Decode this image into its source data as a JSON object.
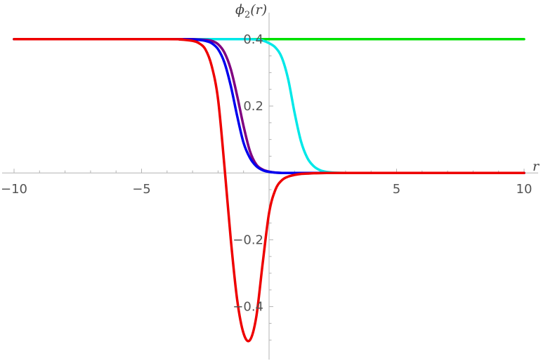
{
  "chart_data": {
    "type": "line",
    "title": "",
    "xlabel": "r",
    "ylabel": "ϕ2(r)",
    "ylabel_base": "ϕ",
    "ylabel_sub": "2",
    "ylabel_arg": "(r)",
    "xlim": [
      -10,
      10
    ],
    "ylim": [
      -0.55,
      0.45
    ],
    "x_ticks": [
      {
        "value": -10,
        "label": "−10"
      },
      {
        "value": -5,
        "label": "−5"
      },
      {
        "value": 5,
        "label": "5"
      },
      {
        "value": 10,
        "label": "10"
      }
    ],
    "y_ticks": [
      {
        "value": 0.4,
        "label": "0.4"
      },
      {
        "value": 0.2,
        "label": "0.2"
      },
      {
        "value": -0.2,
        "label": "−0.2"
      },
      {
        "value": -0.4,
        "label": "−0.4"
      }
    ],
    "grid": false,
    "x": [
      -10,
      -4,
      -3.5,
      -3,
      -2.75,
      -2.5,
      -2.25,
      -2,
      -1.75,
      -1.5,
      -1.25,
      -1,
      -0.75,
      -0.5,
      -0.25,
      0,
      0.25,
      0.5,
      0.75,
      1,
      1.25,
      1.5,
      1.75,
      2,
      2.25,
      2.5,
      3,
      3.5,
      4,
      5,
      10
    ],
    "series": [
      {
        "color": "#00e000",
        "values": [
          0.4,
          0.4,
          0.4,
          0.4,
          0.4,
          0.4,
          0.4,
          0.4,
          0.4,
          0.4,
          0.4,
          0.4,
          0.4,
          0.4,
          0.4,
          0.4,
          0.4,
          0.4,
          0.4,
          0.4,
          0.4,
          0.4,
          0.4,
          0.4,
          0.4,
          0.4,
          0.4,
          0.4,
          0.4,
          0.4,
          0.4
        ]
      },
      {
        "color": "#00e8e8",
        "values": [
          0.4,
          0.4,
          0.4,
          0.4,
          0.4,
          0.4,
          0.4,
          0.4,
          0.4,
          0.4,
          0.4,
          0.4,
          0.4,
          0.399,
          0.396,
          0.388,
          0.375,
          0.345,
          0.28,
          0.18,
          0.095,
          0.045,
          0.02,
          0.008,
          0.003,
          0.001,
          0,
          0,
          0,
          0,
          0
        ]
      },
      {
        "color": "#800080",
        "values": [
          0.4,
          0.4,
          0.4,
          0.4,
          0.399,
          0.398,
          0.395,
          0.385,
          0.36,
          0.31,
          0.23,
          0.14,
          0.065,
          0.025,
          0.01,
          0.004,
          0.001,
          0,
          0,
          0,
          0,
          0,
          0,
          0,
          0,
          0,
          0,
          0,
          0,
          0,
          0
        ]
      },
      {
        "color": "#0000ee",
        "values": [
          0.4,
          0.4,
          0.4,
          0.399,
          0.398,
          0.395,
          0.388,
          0.37,
          0.33,
          0.26,
          0.17,
          0.09,
          0.045,
          0.02,
          0.008,
          0.003,
          0.001,
          0,
          0,
          0,
          0,
          0,
          0,
          0,
          0,
          0,
          0,
          0,
          0,
          0,
          0
        ]
      },
      {
        "color": "#ee0000",
        "values": [
          0.4,
          0.4,
          0.399,
          0.395,
          0.388,
          0.37,
          0.32,
          0.22,
          0.02,
          -0.2,
          -0.38,
          -0.48,
          -0.5,
          -0.43,
          -0.27,
          -0.12,
          -0.05,
          -0.022,
          -0.011,
          -0.006,
          -0.003,
          -0.002,
          -0.001,
          -0.0005,
          -0.0002,
          0,
          0,
          0,
          0,
          0,
          0
        ]
      }
    ]
  }
}
